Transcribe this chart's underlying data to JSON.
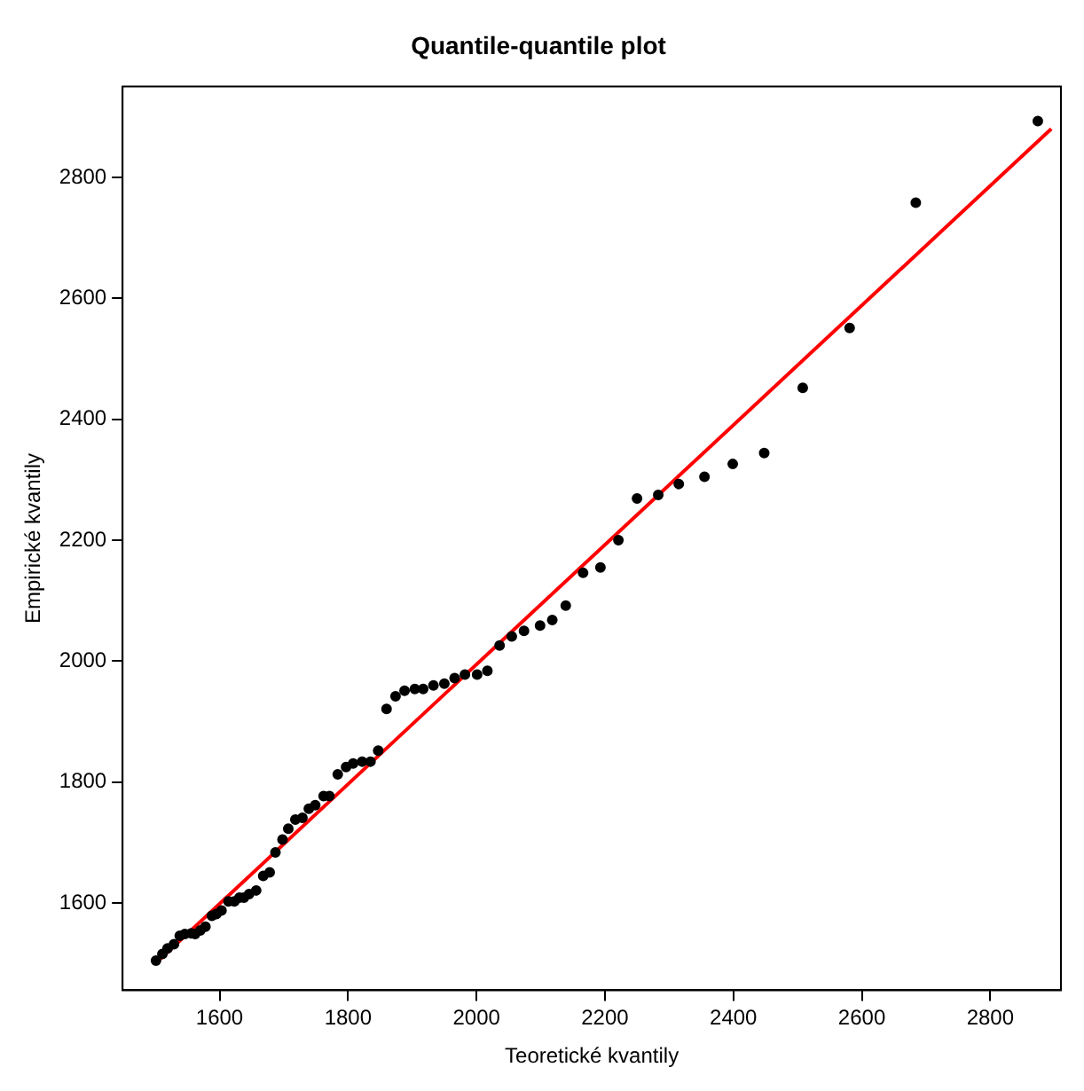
{
  "chart_data": {
    "type": "scatter",
    "title": "Quantile-quantile plot",
    "xlabel": "Teoretické kvantily",
    "ylabel": "Empirické kvantily",
    "xlim": [
      1449,
      2910
    ],
    "ylim": [
      1456,
      2950
    ],
    "xticks": [
      1600,
      1800,
      2000,
      2200,
      2400,
      2600,
      2800
    ],
    "yticks": [
      1600,
      1800,
      2000,
      2200,
      2400,
      2600,
      2800
    ],
    "grid": false,
    "legend": false,
    "marker": "circle",
    "series": [
      {
        "color": "#000000",
        "x": [
          1501,
          1511,
          1519,
          1529,
          1538,
          1546,
          1556,
          1562,
          1570,
          1578,
          1588,
          1595,
          1603,
          1614,
          1623,
          1631,
          1638,
          1646,
          1657,
          1668,
          1678,
          1687,
          1698,
          1707,
          1718,
          1729,
          1739,
          1749,
          1762,
          1771,
          1784,
          1797,
          1808,
          1822,
          1835,
          1847,
          1860,
          1874,
          1888,
          1904,
          1917,
          1933,
          1950,
          1966,
          1982,
          2001,
          2017,
          2036,
          2055,
          2074,
          2099,
          2118,
          2139,
          2166,
          2193,
          2221,
          2250,
          2283,
          2315,
          2355,
          2399,
          2448,
          2508,
          2581,
          2684,
          2874
        ],
        "values": [
          1505,
          1516,
          1525,
          1532,
          1546,
          1549,
          1550,
          1549,
          1555,
          1561,
          1579,
          1582,
          1588,
          1603,
          1603,
          1609,
          1609,
          1615,
          1621,
          1645,
          1651,
          1684,
          1705,
          1723,
          1738,
          1741,
          1756,
          1762,
          1777,
          1777,
          1813,
          1825,
          1831,
          1834,
          1834,
          1852,
          1921,
          1942,
          1951,
          1954,
          1954,
          1960,
          1963,
          1972,
          1978,
          1978,
          1984,
          2026,
          2041,
          2050,
          2059,
          2068,
          2092,
          2146,
          2155,
          2200,
          2269,
          2275,
          2293,
          2305,
          2326,
          2344,
          2452,
          2551,
          2758,
          2893
        ]
      },
      {
        "type": "line",
        "color": "#ff0000",
        "line_style": "solid",
        "marker": "none",
        "x": [
          1500,
          2895
        ],
        "values": [
          1500,
          2880
        ]
      }
    ]
  }
}
